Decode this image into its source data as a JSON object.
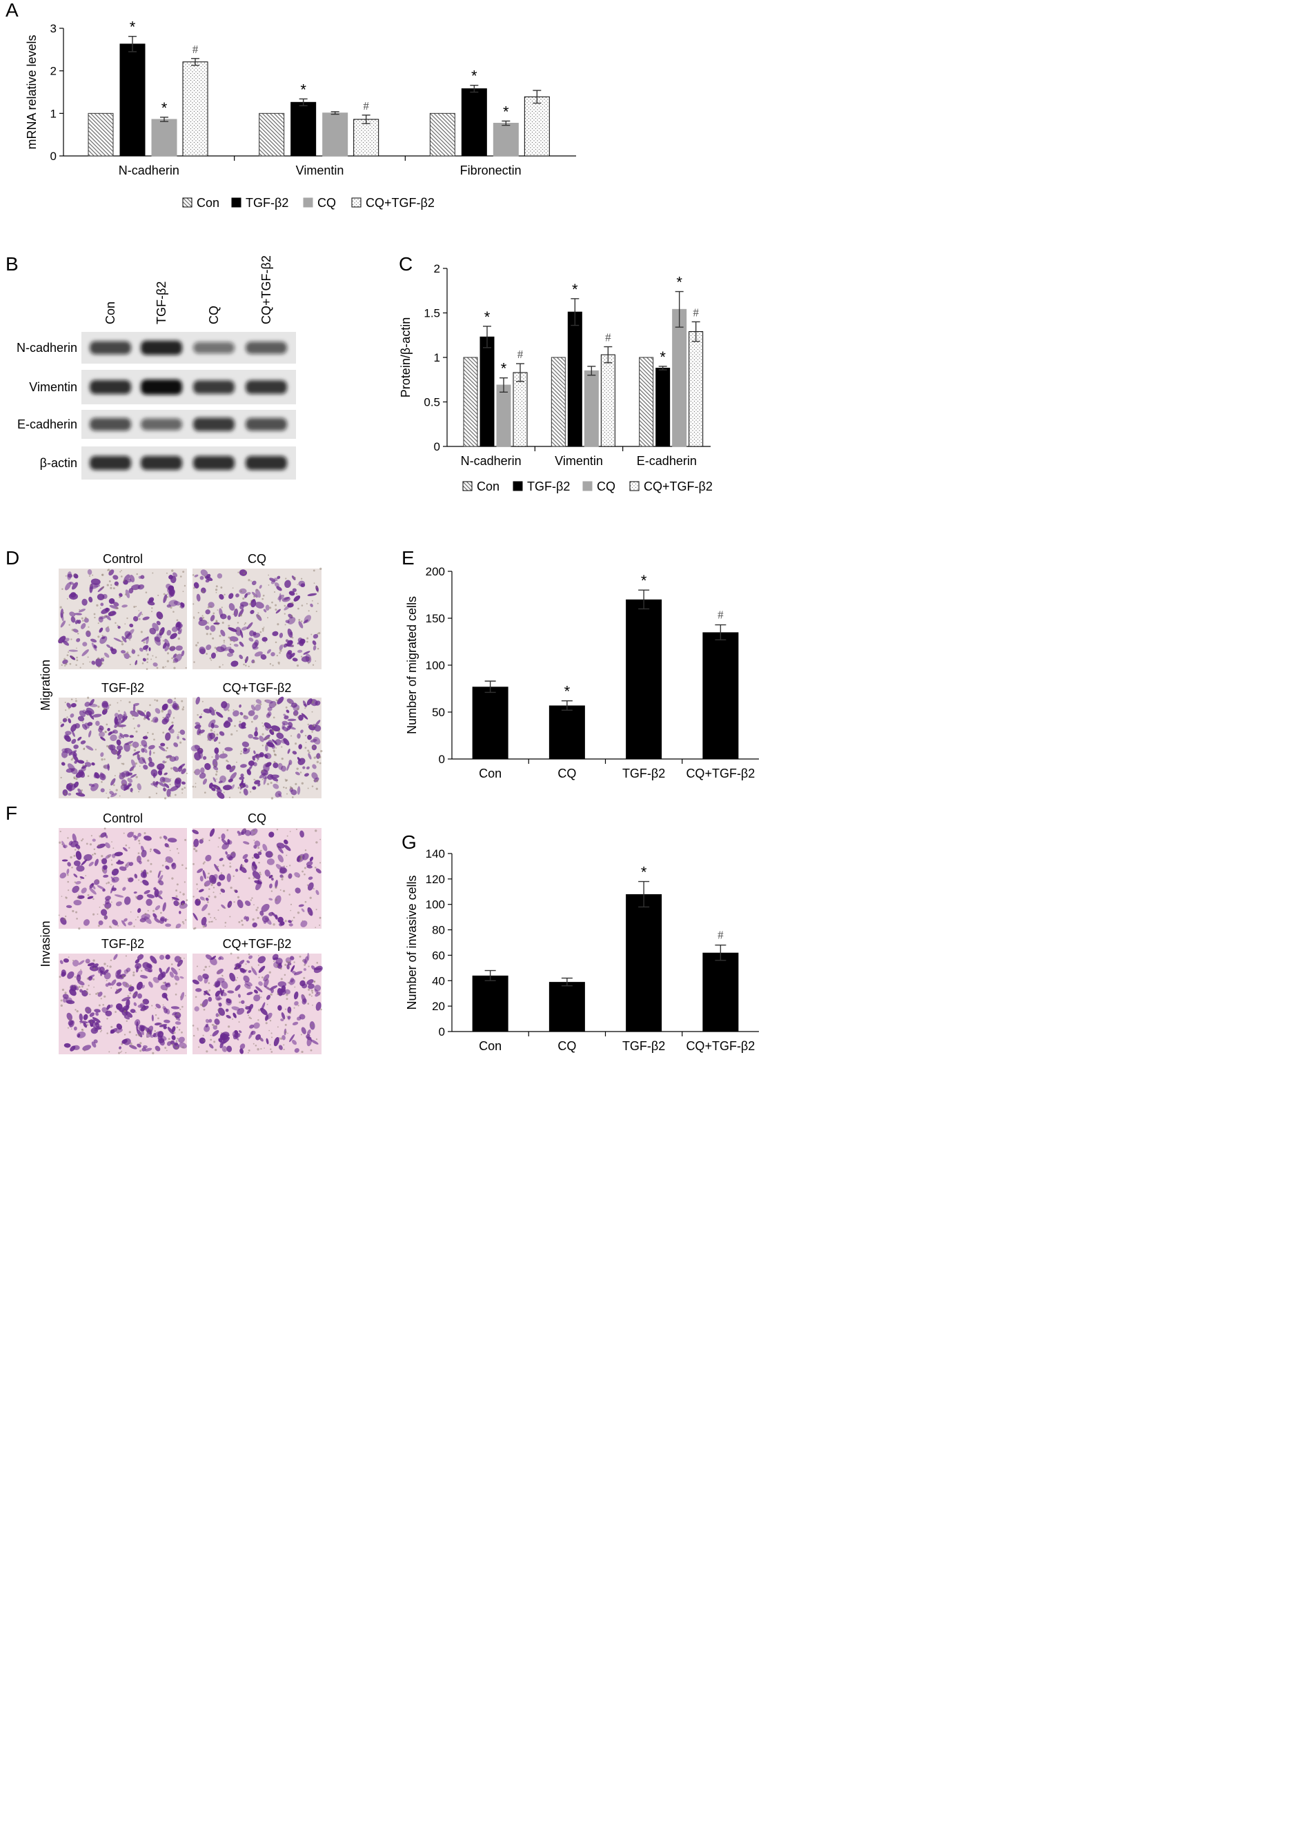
{
  "colors": {
    "con_hatch": "#b8b8b8",
    "tgf": "#000000",
    "cq": "#a6a6a6",
    "cqtgf_dots": "#777777",
    "axis": "#000000",
    "micro_bg": "#e8e0dd",
    "micro_bg_invasion": "#f0d6e2",
    "cell_purple": "#6a2b91"
  },
  "panels": {
    "A": "A",
    "B": "B",
    "C": "C",
    "D": "D",
    "E": "E",
    "F": "F",
    "G": "G"
  },
  "legend": {
    "con": "Con",
    "tgf": "TGF-β2",
    "cq": "CQ",
    "cqtgf": "CQ+TGF-β2"
  },
  "markers": {
    "star": "*",
    "hash": "#"
  },
  "blot": {
    "lanes": [
      "Con",
      "TGF-β2",
      "CQ",
      "CQ+TGF-β2"
    ],
    "rows": [
      "N-cadherin",
      "Vimentin",
      "E-cadherin",
      "β-actin"
    ],
    "band_intensity": [
      [
        0.75,
        0.9,
        0.55,
        0.65
      ],
      [
        0.85,
        1.0,
        0.8,
        0.82
      ],
      [
        0.7,
        0.6,
        0.8,
        0.7
      ],
      [
        0.85,
        0.85,
        0.85,
        0.85
      ]
    ]
  },
  "micro": {
    "D": {
      "side_label": "Migration",
      "labels": [
        "Control",
        "CQ",
        "TGF-β2",
        "CQ+TGF-β2"
      ],
      "density": [
        0.55,
        0.45,
        0.85,
        0.75
      ]
    },
    "F": {
      "side_label": "Invasion",
      "labels": [
        "Control",
        "CQ",
        "TGF-β2",
        "CQ+TGF-β2"
      ],
      "density": [
        0.4,
        0.35,
        0.8,
        0.7
      ]
    }
  },
  "chart_data": [
    {
      "panel": "A",
      "type": "bar",
      "ylabel": "mRNA relative levels",
      "ylim": [
        0,
        3
      ],
      "yticks": [
        "0",
        "1",
        "2",
        "3"
      ],
      "categories": [
        "N-cadherin",
        "Vimentin",
        "Fibronectin"
      ],
      "series": [
        {
          "name": "Con",
          "values": [
            1.0,
            1.0,
            1.0
          ],
          "errors": [
            0,
            0,
            0
          ],
          "markers": [
            "",
            "",
            ""
          ]
        },
        {
          "name": "TGF-β2",
          "values": [
            2.63,
            1.26,
            1.58
          ],
          "errors": [
            0.18,
            0.08,
            0.08
          ],
          "markers": [
            "*",
            "*",
            "*"
          ]
        },
        {
          "name": "CQ",
          "values": [
            0.86,
            1.01,
            0.77
          ],
          "errors": [
            0.05,
            0.03,
            0.05
          ],
          "markers": [
            "*",
            "",
            "*"
          ]
        },
        {
          "name": "CQ+TGF-β2",
          "values": [
            2.21,
            0.86,
            1.39
          ],
          "errors": [
            0.08,
            0.1,
            0.15
          ],
          "markers": [
            "#",
            "#",
            ""
          ]
        }
      ],
      "legend_position": "bottom"
    },
    {
      "panel": "C",
      "type": "bar",
      "ylabel": "Protein/β-actin",
      "ylim": [
        0,
        2
      ],
      "yticks": [
        "0",
        "0.5",
        "1",
        "1.5",
        "2"
      ],
      "categories": [
        "N-cadherin",
        "Vimentin",
        "E-cadherin"
      ],
      "series": [
        {
          "name": "Con",
          "values": [
            1.0,
            1.0,
            1.0
          ],
          "errors": [
            0,
            0,
            0
          ],
          "markers": [
            "",
            "",
            ""
          ]
        },
        {
          "name": "TGF-β2",
          "values": [
            1.23,
            1.51,
            0.88
          ],
          "errors": [
            0.12,
            0.15,
            0.02
          ],
          "markers": [
            "*",
            "*",
            "*"
          ]
        },
        {
          "name": "CQ",
          "values": [
            0.69,
            0.85,
            1.54
          ],
          "errors": [
            0.08,
            0.05,
            0.2
          ],
          "markers": [
            "*",
            "",
            "*"
          ]
        },
        {
          "name": "CQ+TGF-β2",
          "values": [
            0.83,
            1.03,
            1.29
          ],
          "errors": [
            0.1,
            0.09,
            0.11
          ],
          "markers": [
            "#",
            "#",
            "#"
          ]
        }
      ],
      "legend_position": "bottom"
    },
    {
      "panel": "E",
      "type": "bar",
      "ylabel": "Number of migrated cells",
      "ylim": [
        0,
        200
      ],
      "yticks": [
        "0",
        "50",
        "100",
        "150",
        "200"
      ],
      "categories": [
        "Con",
        "CQ",
        "TGF-β2",
        "CQ+TGF-β2"
      ],
      "values": [
        77,
        57,
        170,
        135
      ],
      "errors": [
        6,
        5,
        10,
        8
      ],
      "markers": [
        "",
        "*",
        "*",
        "#"
      ]
    },
    {
      "panel": "G",
      "type": "bar",
      "ylabel": "Number of invasive cells",
      "ylim": [
        0,
        140
      ],
      "yticks": [
        "0",
        "20",
        "40",
        "60",
        "80",
        "100",
        "120",
        "140"
      ],
      "categories": [
        "Con",
        "CQ",
        "TGF-β2",
        "CQ+TGF-β2"
      ],
      "values": [
        44,
        39,
        108,
        62
      ],
      "errors": [
        4,
        3,
        10,
        6
      ],
      "markers": [
        "",
        "",
        "*",
        "#"
      ]
    }
  ]
}
